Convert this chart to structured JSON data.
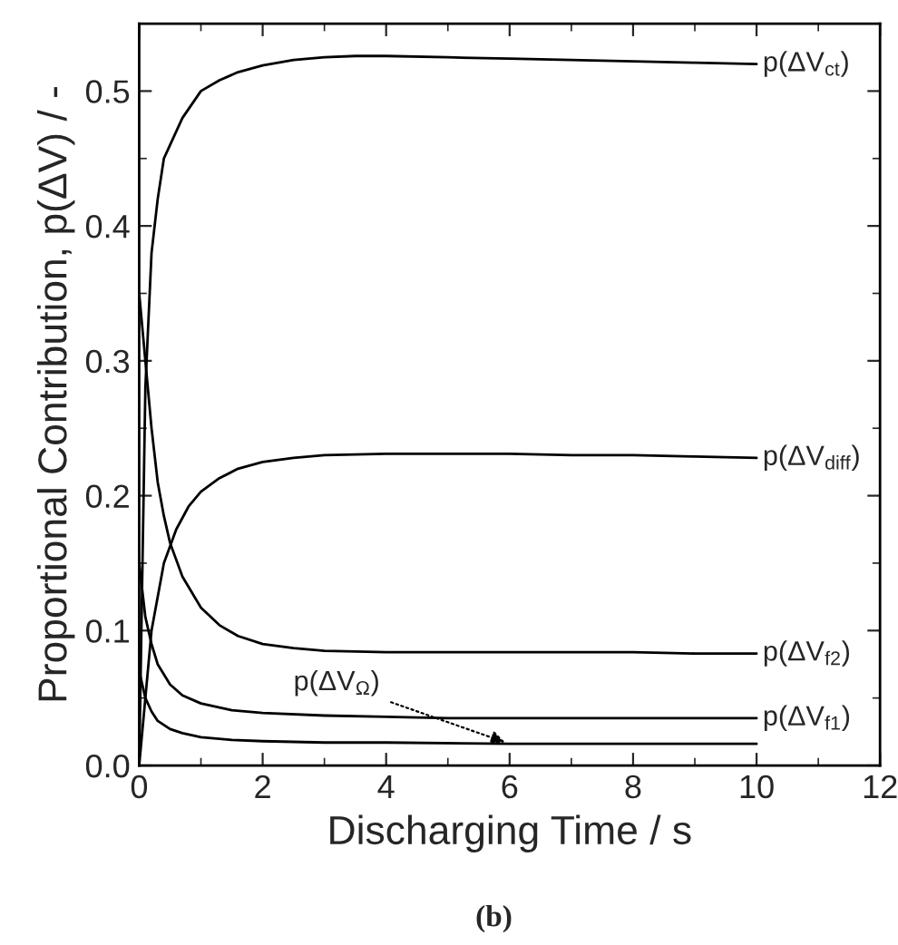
{
  "chart_data": {
    "type": "line",
    "xlabel": "Discharging Time / s",
    "ylabel": "Proportional Contribution, p(ΔV) / -",
    "title": "(b)",
    "xlim": [
      0,
      12
    ],
    "ylim": [
      0,
      0.55
    ],
    "xticks": [
      0,
      2,
      4,
      6,
      8,
      10,
      12
    ],
    "yticks": [
      {
        "value": 0,
        "label": "0.0"
      },
      0.1,
      0.2,
      0.3,
      0.4,
      0.5
    ],
    "grid": false,
    "legend": false,
    "marker": "none",
    "line_style": "solid",
    "series": [
      {
        "name": "p(ΔV$_{ct}$)",
        "color": "#000000",
        "x": [
          0,
          0.1,
          0.2,
          0.3,
          0.4,
          0.5,
          0.7,
          1.0,
          1.3,
          1.6,
          2.0,
          2.5,
          3.0,
          3.5,
          4.0,
          5.0,
          6.0,
          7.0,
          8.0,
          9.0,
          10.0
        ],
        "values": [
          0.0,
          0.28,
          0.38,
          0.42,
          0.45,
          0.46,
          0.48,
          0.5,
          0.508,
          0.514,
          0.519,
          0.523,
          0.525,
          0.526,
          0.526,
          0.525,
          0.524,
          0.523,
          0.522,
          0.521,
          0.52
        ]
      },
      {
        "name": "p(ΔV$_{diff}$)",
        "color": "#000000",
        "x": [
          0,
          0.1,
          0.2,
          0.4,
          0.6,
          0.8,
          1.0,
          1.3,
          1.6,
          2.0,
          2.5,
          3.0,
          4.0,
          5.0,
          6.0,
          7.0,
          8.0,
          9.0,
          10.0
        ],
        "values": [
          0.0,
          0.05,
          0.1,
          0.15,
          0.175,
          0.192,
          0.203,
          0.213,
          0.22,
          0.225,
          0.228,
          0.23,
          0.231,
          0.231,
          0.231,
          0.23,
          0.23,
          0.229,
          0.228
        ]
      },
      {
        "name": "p(ΔV$_{f2}$)",
        "color": "#000000",
        "x": [
          0,
          0.1,
          0.2,
          0.3,
          0.4,
          0.5,
          0.7,
          1.0,
          1.3,
          1.6,
          2.0,
          2.5,
          3.0,
          4.0,
          5.0,
          6.0,
          7.0,
          8.0,
          9.0,
          10.0
        ],
        "values": [
          0.35,
          0.3,
          0.25,
          0.21,
          0.185,
          0.165,
          0.14,
          0.117,
          0.104,
          0.096,
          0.09,
          0.087,
          0.085,
          0.084,
          0.084,
          0.084,
          0.084,
          0.084,
          0.083,
          0.083
        ]
      },
      {
        "name": "p(ΔV$_{f1}$)",
        "color": "#000000",
        "x": [
          0,
          0.1,
          0.2,
          0.3,
          0.5,
          0.7,
          1.0,
          1.5,
          2.0,
          3.0,
          4.0,
          5.0,
          6.0,
          8.0,
          10.0
        ],
        "values": [
          0.15,
          0.11,
          0.09,
          0.075,
          0.06,
          0.052,
          0.046,
          0.041,
          0.039,
          0.037,
          0.036,
          0.035,
          0.035,
          0.035,
          0.035
        ]
      },
      {
        "color": "#000000",
        "x": [
          0,
          0.1,
          0.2,
          0.3,
          0.5,
          0.7,
          1.0,
          1.5,
          2.0,
          3.0,
          4.0,
          6.0,
          8.0,
          10.0
        ],
        "values": [
          0.07,
          0.05,
          0.04,
          0.033,
          0.027,
          0.024,
          0.021,
          0.019,
          0.018,
          0.017,
          0.017,
          0.016,
          0.016,
          0.016
        ]
      }
    ],
    "annotations": [
      {
        "text": "p(ΔV$_{Ω}$)",
        "x": 6,
        "y": 0.016
      }
    ]
  }
}
